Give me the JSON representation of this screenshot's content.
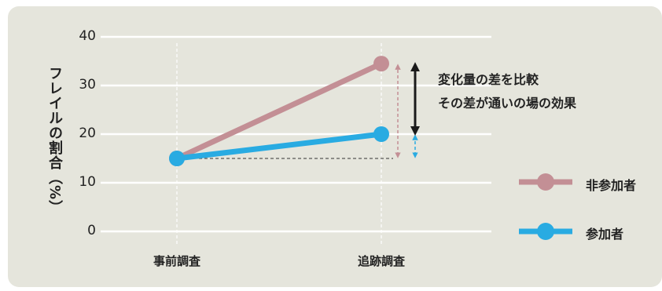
{
  "colors": {
    "background": "#e5e5dc",
    "non_participant": "#c38f95",
    "participant": "#29abe2",
    "diff_arrow": "#1a1a1a"
  },
  "chart_data": {
    "type": "line",
    "ylabel": "フレイルの割合（%）",
    "xlabel": "",
    "categories": [
      "事前調査",
      "追跡調査"
    ],
    "y_ticks": [
      "0",
      "10",
      "20",
      "30",
      "40"
    ],
    "ylim": [
      0,
      40
    ],
    "grid": true,
    "legend_position": "right",
    "series": [
      {
        "name": "非参加者",
        "values": [
          15,
          34.5
        ],
        "color": "#c38f95"
      },
      {
        "name": "参加者",
        "values": [
          15,
          20
        ],
        "color": "#29abe2"
      }
    ],
    "annotations": [
      "変化量の差を比較",
      "その差が通いの場の効果"
    ]
  }
}
